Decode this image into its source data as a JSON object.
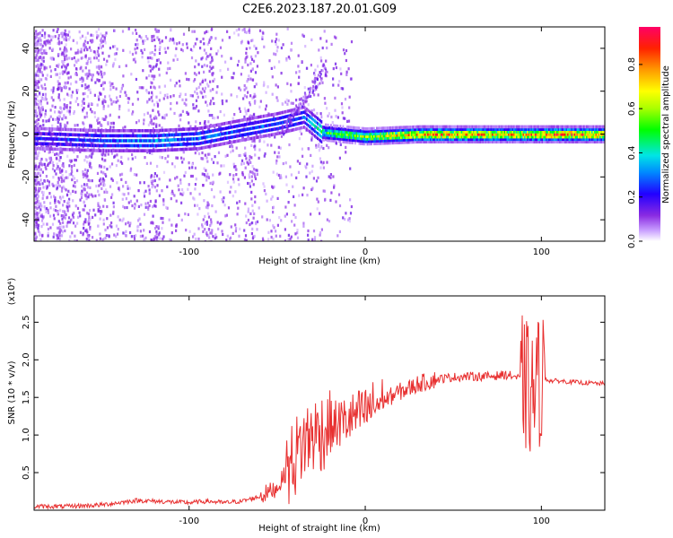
{
  "title": "C2E6.2023.187.20.01.G09",
  "chart_data": [
    {
      "type": "heatmap",
      "xlabel": "Height of straight line (km)",
      "ylabel": "Frequency (Hz)",
      "xlim": [
        -188,
        136
      ],
      "ylim": [
        -50,
        50
      ],
      "x_ticks": [
        -100,
        0,
        100
      ],
      "y_ticks": [
        -40,
        -20,
        0,
        20,
        40
      ],
      "colorbar": {
        "label": "Normalized spectral amplitude",
        "range": [
          0,
          0.97
        ],
        "ticks": [
          0.0,
          0.2,
          0.4,
          0.6,
          0.8
        ]
      },
      "ridge": [
        {
          "x": -185,
          "freq": -2,
          "amp": 0.25
        },
        {
          "x": -150,
          "freq": -3,
          "amp": 0.32
        },
        {
          "x": -120,
          "freq": -3,
          "amp": 0.38
        },
        {
          "x": -95,
          "freq": -2,
          "amp": 0.35
        },
        {
          "x": -70,
          "freq": 2,
          "amp": 0.3
        },
        {
          "x": -50,
          "freq": 5,
          "amp": 0.32
        },
        {
          "x": -35,
          "freq": 8,
          "amp": 0.3
        },
        {
          "x": -25,
          "freq": 1,
          "amp": 0.55
        },
        {
          "x": 0,
          "freq": -1,
          "amp": 0.7
        },
        {
          "x": 30,
          "freq": 0,
          "amp": 0.9
        },
        {
          "x": 60,
          "freq": 0,
          "amp": 0.88
        },
        {
          "x": 90,
          "freq": 0,
          "amp": 0.85
        },
        {
          "x": 110,
          "freq": 0,
          "amp": 0.95
        },
        {
          "x": 136,
          "freq": 0,
          "amp": 0.9
        }
      ]
    },
    {
      "type": "line",
      "xlabel": "Height of straight line (km)",
      "ylabel": "SNR (10 * v/v)",
      "y_multiplier": "(x10⁴)",
      "xlim": [
        -188,
        136
      ],
      "ylim": [
        0,
        2.85
      ],
      "x_ticks": [
        -100,
        0,
        100
      ],
      "y_ticks": [
        0.5,
        1.0,
        1.5,
        2.0,
        2.5
      ],
      "series": [
        {
          "color": "#e83030",
          "x": [
            -188,
            -170,
            -150,
            -140,
            -130,
            -120,
            -100,
            -90,
            -80,
            -70,
            -60,
            -50,
            -45,
            -40,
            -35,
            -30,
            -25,
            -20,
            -15,
            -10,
            -5,
            0,
            5,
            10,
            15,
            20,
            25,
            30,
            40,
            50,
            60,
            70,
            80,
            85,
            90,
            95,
            100,
            105,
            110,
            120,
            136
          ],
          "y": [
            0.05,
            0.05,
            0.07,
            0.1,
            0.13,
            0.12,
            0.1,
            0.12,
            0.1,
            0.12,
            0.18,
            0.3,
            0.5,
            0.7,
            0.9,
            1.0,
            1.05,
            1.1,
            1.15,
            1.2,
            1.25,
            1.3,
            1.4,
            1.45,
            1.52,
            1.58,
            1.62,
            1.68,
            1.74,
            1.77,
            1.78,
            1.78,
            1.8,
            1.78,
            1.7,
            1.5,
            1.78,
            1.72,
            1.72,
            1.7,
            1.68
          ]
        }
      ]
    }
  ]
}
